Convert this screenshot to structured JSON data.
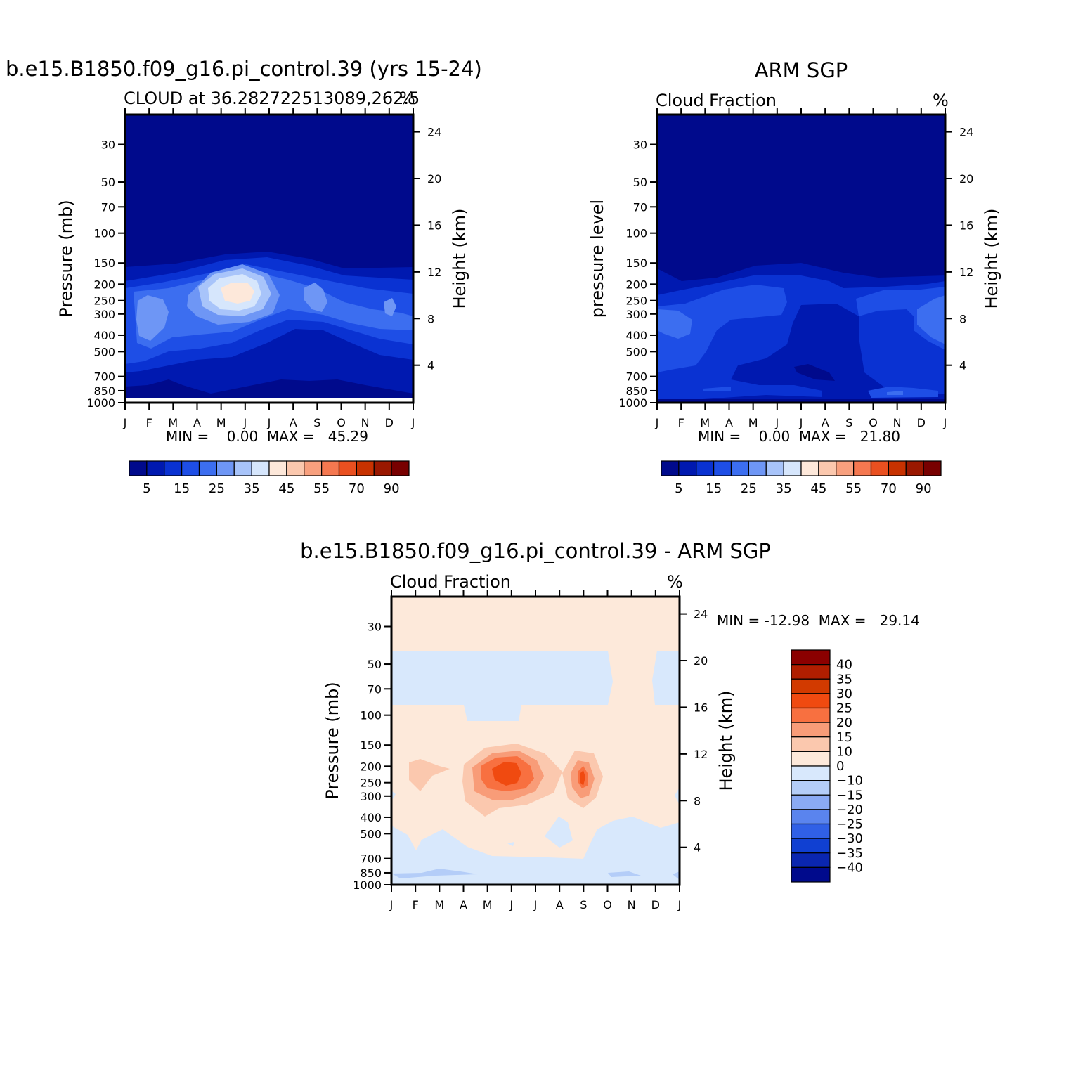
{
  "chart_data": [
    {
      "type": "heatmap",
      "panel": "model",
      "title": "b.e15.B1850.f09_g16.pi_control.39 (yrs 15-24)",
      "subtitle": "CLOUD at 36.282722513089,262.5",
      "units": "%",
      "ylabel": "Pressure (mb)",
      "ylabel_right": "Height (km)",
      "x_ticks": [
        "J",
        "F",
        "M",
        "A",
        "M",
        "J",
        "J",
        "A",
        "S",
        "O",
        "N",
        "D",
        "J"
      ],
      "y_ticks": [
        "30",
        "50",
        "70",
        "100",
        "150",
        "200",
        "250",
        "300",
        "400",
        "500",
        "700",
        "850",
        "1000"
      ],
      "y_ticks_right": [
        "24",
        "20",
        "16",
        "12",
        "8",
        "4"
      ],
      "ylim": [
        1000,
        20
      ],
      "log_scale_y": true,
      "stats": "MIN =    0.00  MAX =   45.29",
      "min": 0.0,
      "max": 45.29,
      "colorbar_labels": [
        "5",
        "15",
        "25",
        "35",
        "45",
        "55",
        "70",
        "90"
      ],
      "colorbar_levels": [
        5,
        10,
        15,
        20,
        25,
        30,
        35,
        40,
        45,
        50,
        55,
        60,
        70,
        80,
        90
      ],
      "colors": [
        "#000a8c",
        "#0019b0",
        "#0a32d2",
        "#1e4ee6",
        "#3c6ef0",
        "#6e96f5",
        "#a8c4fa",
        "#d6e6fc",
        "#fde8da",
        "#fbc8ae",
        "#f8a07e",
        "#f57850",
        "#ea5020",
        "#c83200",
        "#9a1800",
        "#780000"
      ],
      "note_data": "Bands drawn as approximate contour polygons from visual reading"
    },
    {
      "type": "heatmap",
      "panel": "obs",
      "title": "ARM SGP",
      "subtitle": "Cloud Fraction",
      "units": "%",
      "ylabel": "pressure level",
      "ylabel_right": "Height (km)",
      "x_ticks": [
        "J",
        "F",
        "M",
        "A",
        "M",
        "J",
        "J",
        "A",
        "S",
        "O",
        "N",
        "D",
        "J"
      ],
      "y_ticks": [
        "30",
        "50",
        "70",
        "100",
        "150",
        "200",
        "250",
        "300",
        "400",
        "500",
        "700",
        "850",
        "1000"
      ],
      "y_ticks_right": [
        "24",
        "20",
        "16",
        "12",
        "8",
        "4"
      ],
      "ylim": [
        1000,
        20
      ],
      "log_scale_y": true,
      "stats": "MIN =    0.00  MAX =   21.80",
      "min": 0.0,
      "max": 21.8,
      "colorbar_labels": [
        "5",
        "15",
        "25",
        "35",
        "45",
        "55",
        "70",
        "90"
      ]
    },
    {
      "type": "heatmap",
      "panel": "difference",
      "title": "b.e15.B1850.f09_g16.pi_control.39 - ARM SGP",
      "subtitle": "Cloud Fraction",
      "units": "%",
      "ylabel": "Pressure (mb)",
      "ylabel_right": "Height (km)",
      "x_ticks": [
        "J",
        "F",
        "M",
        "A",
        "M",
        "J",
        "J",
        "A",
        "S",
        "O",
        "N",
        "D",
        "J"
      ],
      "y_ticks": [
        "30",
        "50",
        "70",
        "100",
        "150",
        "200",
        "250",
        "300",
        "400",
        "500",
        "700",
        "850",
        "1000"
      ],
      "y_ticks_right": [
        "24",
        "20",
        "16",
        "12",
        "8",
        "4"
      ],
      "ylim": [
        1000,
        20
      ],
      "log_scale_y": true,
      "stats": "MIN = -12.98  MAX =   29.14",
      "min": -12.98,
      "max": 29.14,
      "colorbar_labels": [
        "40",
        "35",
        "30",
        "25",
        "20",
        "15",
        "10",
        "0",
        "-10",
        "-15",
        "-20",
        "-25",
        "-30",
        "-35",
        "-40"
      ],
      "colors": [
        "#8b0000",
        "#b01e00",
        "#d23a00",
        "#f04a10",
        "#f87040",
        "#f89c78",
        "#fbc8ae",
        "#fde9da",
        "#d8e8fc",
        "#b4cdf8",
        "#8aaaf4",
        "#5a84ee",
        "#3060e6",
        "#1040d2",
        "#0a26b0",
        "#000a8c"
      ]
    }
  ]
}
